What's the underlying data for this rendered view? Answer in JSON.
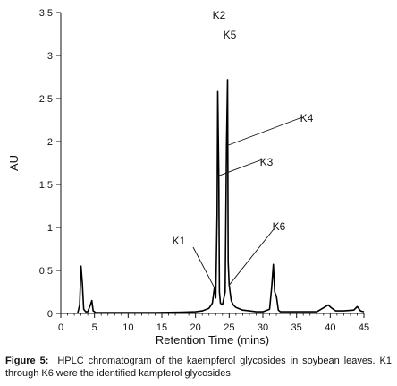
{
  "chart_data": {
    "type": "line",
    "xlabel": "Retention Time (mins)",
    "ylabel": "AU",
    "xlim": [
      0,
      45
    ],
    "ylim": [
      0,
      3.5
    ],
    "xticks": [
      0,
      5,
      10,
      15,
      20,
      25,
      30,
      35,
      40,
      45
    ],
    "yticks": [
      0,
      0.5,
      1,
      1.5,
      2,
      2.5,
      3,
      3.5
    ],
    "grid": false,
    "series": [
      {
        "x": [
          2.5,
          2.8,
          3.0,
          3.2,
          3.4,
          3.7,
          4.0,
          4.4,
          4.6,
          4.8,
          5.2,
          6,
          8,
          10,
          14,
          18,
          20,
          21,
          22,
          22.5,
          22.8,
          23.0,
          23.2,
          23.3,
          23.45,
          23.55,
          23.7,
          24.0,
          24.4,
          24.6,
          24.75,
          24.85,
          25.0,
          25.3,
          25.6,
          26,
          27,
          28,
          29,
          30,
          31,
          31.3,
          31.55,
          31.75,
          32.0,
          32.3,
          32.6,
          33,
          35,
          38,
          39.3,
          39.7,
          40.1,
          40.8,
          42,
          43.5,
          44,
          44.5,
          45
        ],
        "y": [
          0.0,
          0.1,
          0.55,
          0.35,
          0.05,
          0.02,
          0.02,
          0.1,
          0.15,
          0.03,
          0.01,
          0.01,
          0.01,
          0.01,
          0.01,
          0.015,
          0.02,
          0.03,
          0.06,
          0.12,
          0.3,
          0.18,
          1.15,
          2.58,
          1.6,
          0.25,
          0.12,
          0.1,
          0.25,
          1.95,
          2.72,
          0.6,
          0.33,
          0.15,
          0.1,
          0.07,
          0.04,
          0.03,
          0.02,
          0.02,
          0.05,
          0.3,
          0.57,
          0.25,
          0.2,
          0.04,
          0.02,
          0.02,
          0.02,
          0.02,
          0.08,
          0.1,
          0.07,
          0.03,
          0.03,
          0.04,
          0.08,
          0.03,
          0.02
        ]
      }
    ],
    "annotations": [
      {
        "label": "K1",
        "x": 22.8,
        "y": 0.3
      },
      {
        "label": "K2",
        "x": 23.3,
        "y": 2.58
      },
      {
        "label": "K3",
        "x": 23.4,
        "y": 1.6
      },
      {
        "label": "K4",
        "x": 24.6,
        "y": 1.95
      },
      {
        "label": "K5",
        "x": 24.75,
        "y": 2.72
      },
      {
        "label": "K6",
        "x": 25.0,
        "y": 0.33
      }
    ]
  },
  "caption": {
    "label": "Figure 5:",
    "text": "HPLC chromatogram of the kaempferol glycosides in soybean leaves. K1 through K6 were the identified kampferol glycosides."
  }
}
